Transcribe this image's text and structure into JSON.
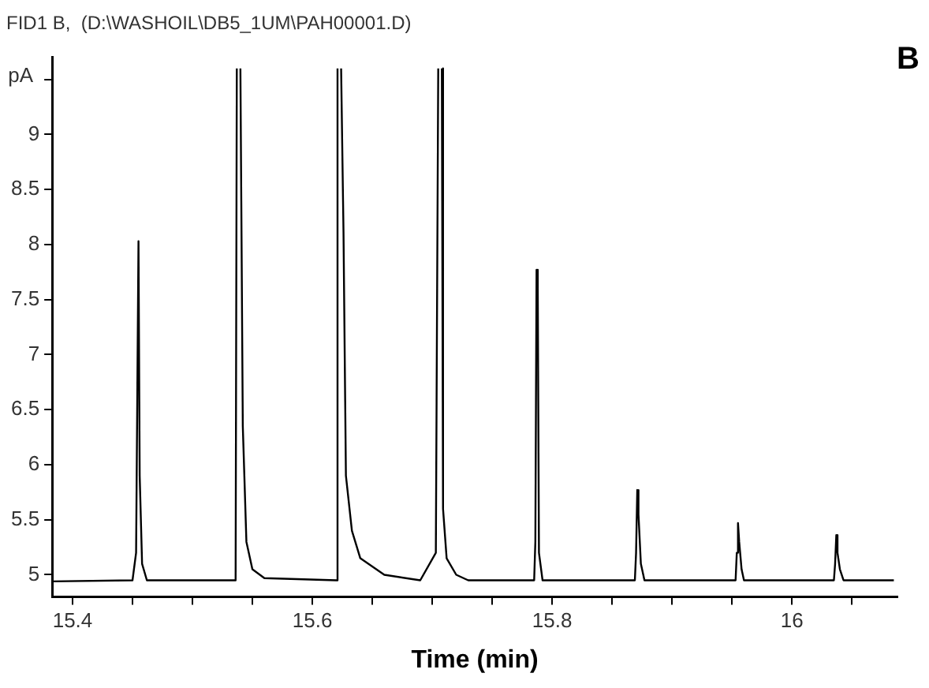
{
  "chart_data": {
    "type": "line",
    "title": "FID1 B,  (D:\\WASHOIL\\DB5_1UM\\PAH00001.D)",
    "xlabel": "Time (min)",
    "ylabel": "pA",
    "annotations": [
      "B"
    ],
    "xlim": [
      15.383,
      16.088
    ],
    "ylim": [
      4.8,
      9.7
    ],
    "xticks": [
      15.4,
      {
        "value": 15.45,
        "label": null
      },
      {
        "value": 15.5,
        "label": null
      },
      {
        "value": 15.55,
        "label": null
      },
      15.6,
      {
        "value": 15.65,
        "label": null
      },
      {
        "value": 15.7,
        "label": null
      },
      {
        "value": 15.75,
        "label": null
      },
      15.8,
      {
        "value": 15.85,
        "label": null
      },
      {
        "value": 15.9,
        "label": null
      },
      {
        "value": 15.95,
        "label": null
      },
      16,
      {
        "value": 16.05,
        "label": null
      }
    ],
    "yticks": [
      5,
      5.5,
      6,
      6.5,
      7,
      7.5,
      8,
      8.5,
      9,
      {
        "value": 9.5,
        "label": null
      }
    ],
    "grid": false,
    "legend": false,
    "marker": "none",
    "line_style": "solid",
    "series": [
      {
        "color": "#000000",
        "x": [
          15.383,
          15.45,
          15.453,
          15.455,
          15.456,
          15.458,
          15.462,
          15.536,
          15.537,
          15.5385,
          15.54,
          15.542,
          15.545,
          15.55,
          15.56,
          15.62,
          15.621,
          15.6225,
          15.624,
          15.626,
          15.628,
          15.633,
          15.64,
          15.66,
          15.69,
          15.703,
          15.705,
          15.7065,
          15.708,
          15.709,
          15.712,
          15.72,
          15.73,
          15.785,
          15.786,
          15.787,
          15.788,
          15.789,
          15.792,
          15.869,
          15.87,
          15.871,
          15.872,
          15.874,
          15.877,
          15.953,
          15.954,
          15.955,
          15.956,
          15.958,
          15.96,
          16.035,
          16.036,
          16.037,
          16.038,
          16.04,
          16.043,
          16.085
        ],
        "values": [
          4.94,
          4.95,
          5.2,
          8.03,
          5.9,
          5.1,
          4.95,
          4.95,
          9.6,
          null,
          9.6,
          6.35,
          5.3,
          5.05,
          4.97,
          4.95,
          9.6,
          null,
          9.6,
          8.1,
          5.9,
          5.4,
          5.15,
          5.0,
          4.95,
          5.2,
          9.6,
          null,
          9.6,
          5.6,
          5.15,
          5.0,
          4.95,
          4.95,
          5.3,
          7.77,
          7.6,
          5.2,
          4.95,
          4.95,
          5.2,
          5.77,
          5.55,
          5.1,
          4.95,
          4.95,
          5.2,
          5.47,
          5.3,
          5.05,
          4.95,
          4.95,
          5.1,
          5.36,
          5.2,
          5.05,
          4.95,
          4.95
        ]
      }
    ]
  }
}
